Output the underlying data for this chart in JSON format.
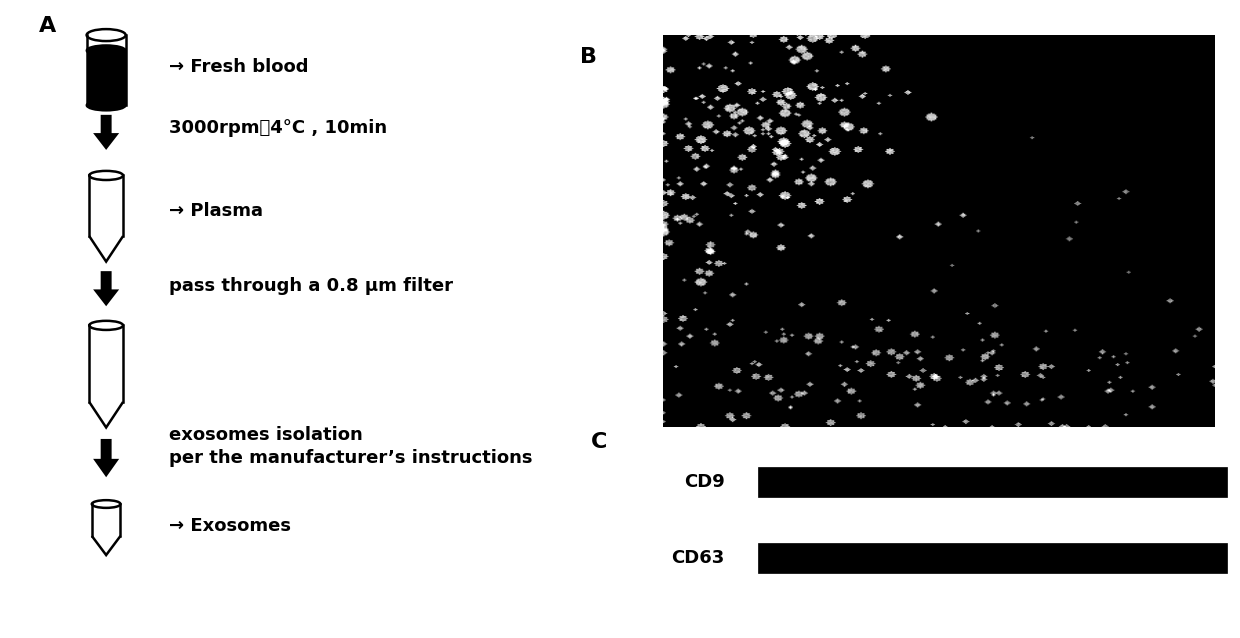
{
  "panel_A_label": "A",
  "panel_B_label": "B",
  "panel_C_label": "C",
  "step1_text": "→ Fresh blood",
  "step2_text": "3000rpm，4°C , 10min",
  "step3_text": "→ Plasma",
  "step4_text": "pass through a 0.8 μm filter",
  "step5_text_line1": "exosomes isolation",
  "step5_text_line2": "per the manufacturer’s instructions",
  "step6_text": "→ Exosomes",
  "cd_labels": [
    "CD9",
    "CD63"
  ],
  "background_color": "#ffffff",
  "text_color": "#000000"
}
